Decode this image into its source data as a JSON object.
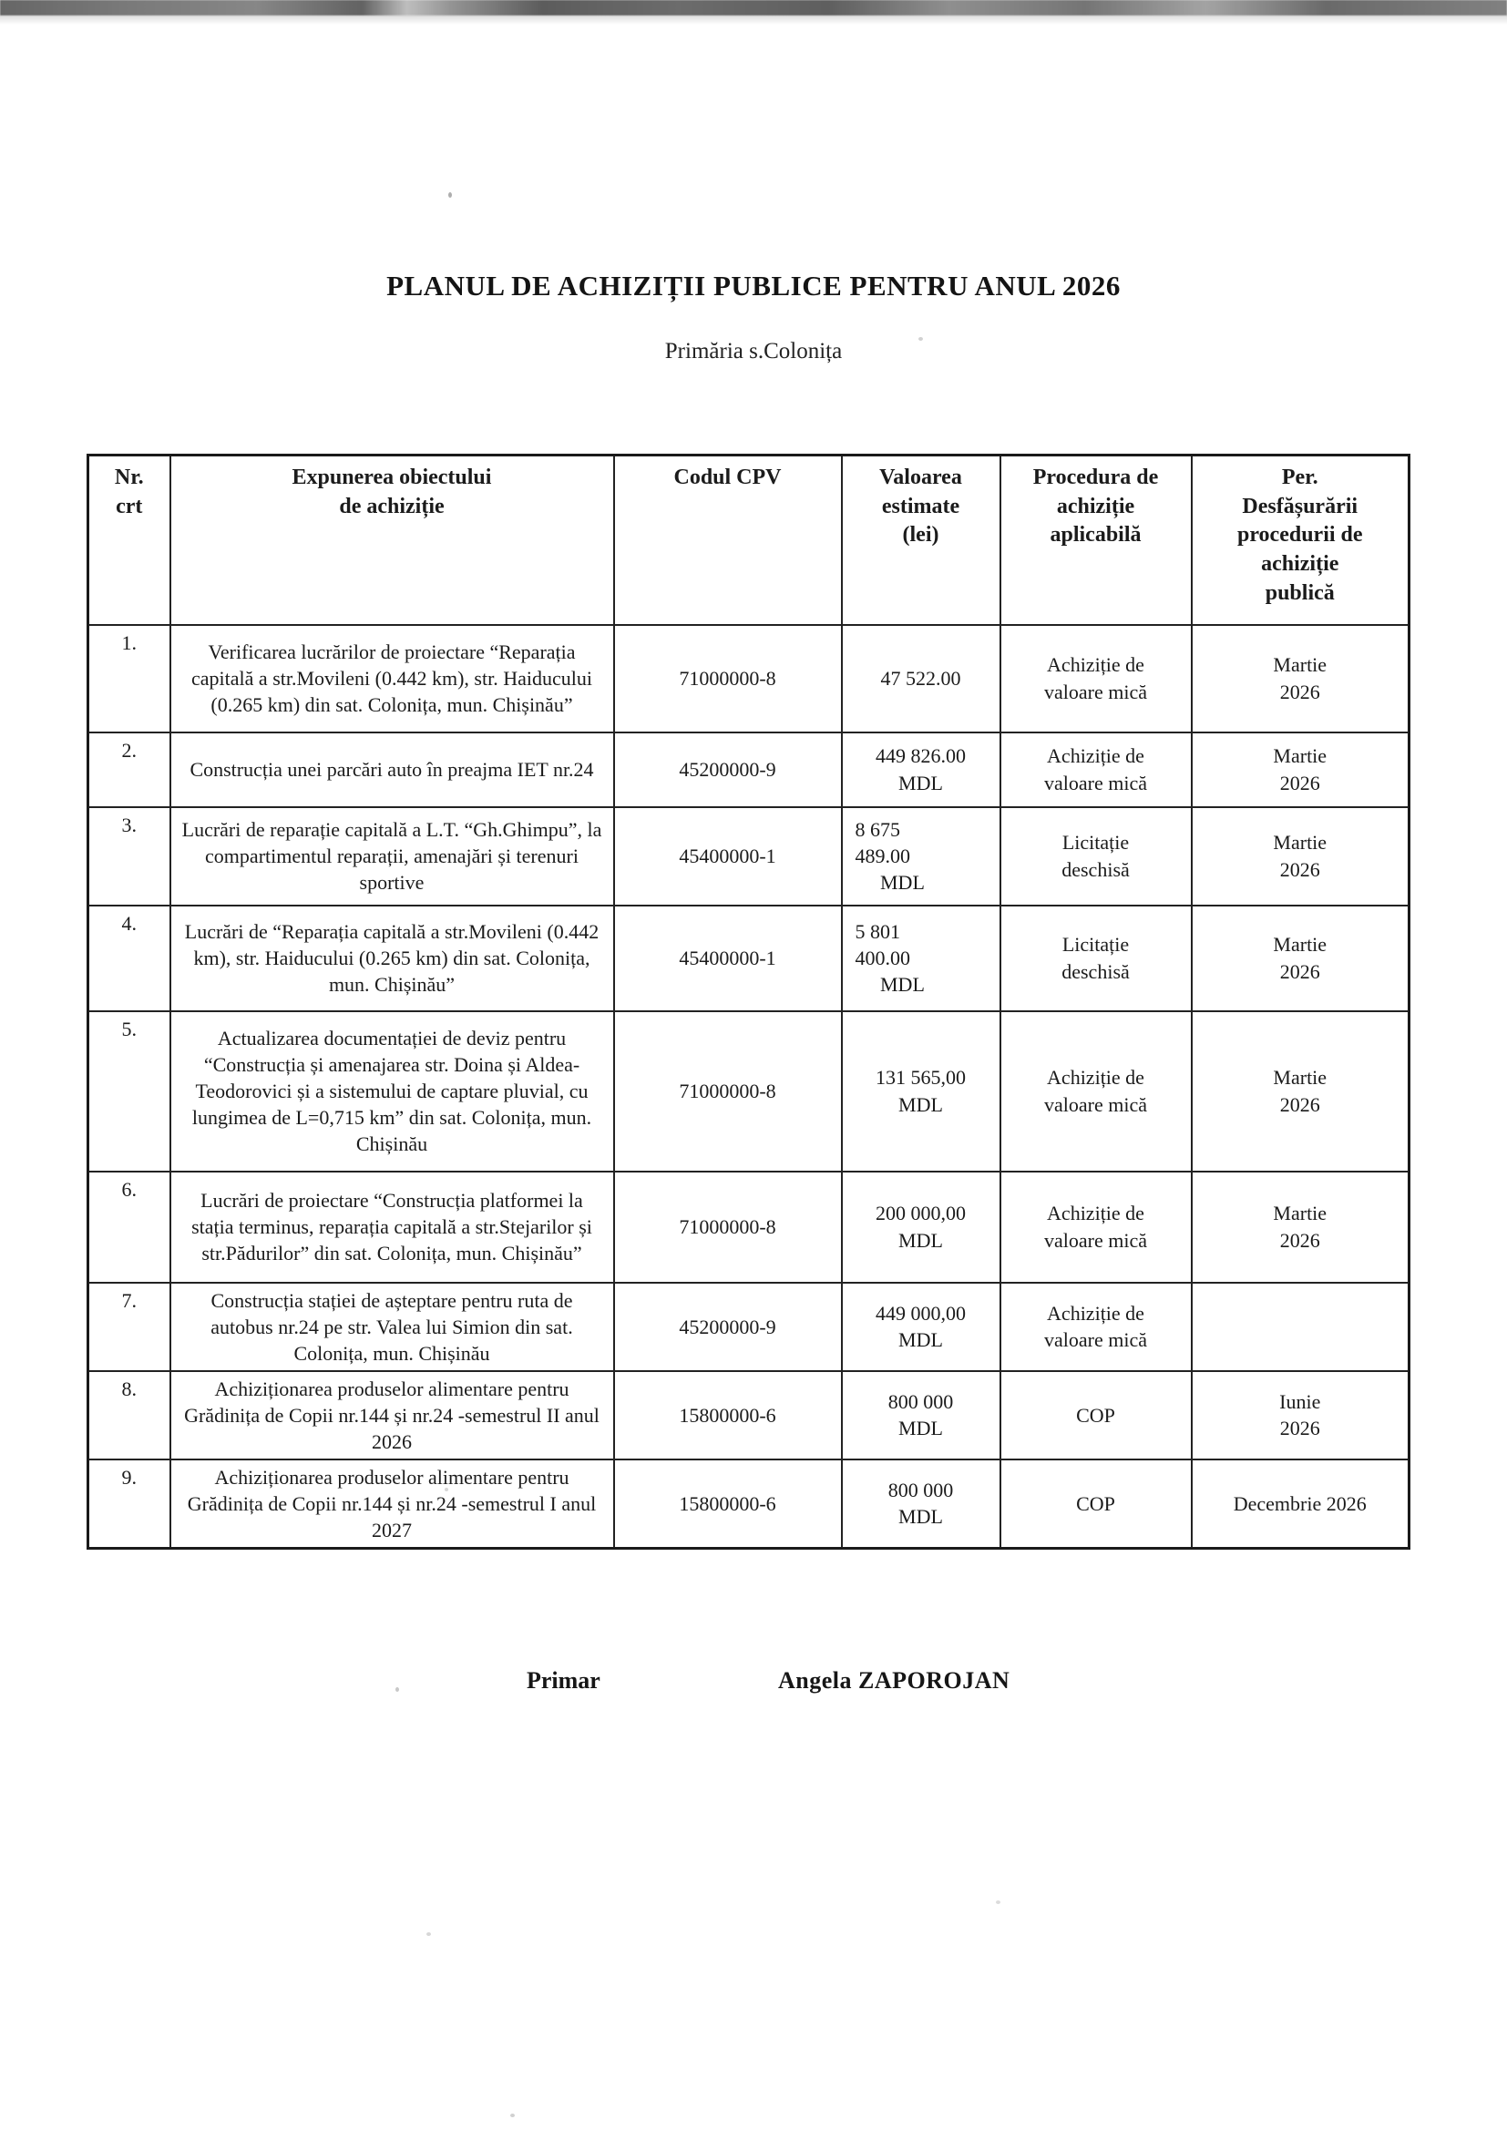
{
  "page": {
    "title": "PLANUL DE ACHIZIȚII PUBLICE PENTRU ANUL 2026",
    "subtitle": "Primăria s.Colonița"
  },
  "table": {
    "headers": [
      "Nr.\ncrt",
      "Expunerea obiectului\nde achiziție",
      "Codul CPV",
      "Valoarea\nestimate\n(lei)",
      "Procedura de\nachiziție\naplicabilă",
      "Per.\nDesfășurării\nprocedurii de\nachiziție\npublică"
    ],
    "rows": [
      {
        "nr": "1.",
        "object": "Verificarea lucrărilor de proiectare “Reparația capitală a str.Movileni (0.442 km), str. Haiducului (0.265 km) din sat. Colonița, mun. Chișinău”",
        "cpv": "71000000-8",
        "value": "47 522.00",
        "value_align": "center",
        "procedure": "Achiziție de\nvaloare mică",
        "period": "Martie\n2026"
      },
      {
        "nr": "2.",
        "object": "Construcția unei parcări auto în preajma IET nr.24",
        "cpv": "45200000-9",
        "value": "449 826.00\nMDL",
        "value_align": "center",
        "procedure": "Achiziție de\nvaloare mică",
        "period": "Martie\n2026"
      },
      {
        "nr": "3.",
        "object": "Lucrări de reparație capitală a L.T. “Gh.Ghimpu”, la compartimentul reparații, amenajări și terenuri sportive",
        "cpv": "45400000-1",
        "value": "8 675\n489.00\n     MDL",
        "value_align": "left",
        "procedure": "Licitație\ndeschisă",
        "period": "Martie\n2026"
      },
      {
        "nr": "4.",
        "object": "Lucrări de “Reparația capitală a str.Movileni (0.442 km), str. Haiducului (0.265 km) din sat. Colonița, mun. Chișinău”",
        "cpv": "45400000-1",
        "value": "5 801\n400.00\n     MDL",
        "value_align": "left",
        "procedure": "Licitație\ndeschisă",
        "period": "Martie\n2026"
      },
      {
        "nr": "5.",
        "object": "Actualizarea documentației de deviz pentru “Construcția și amenajarea str. Doina și Aldea-Teodorovici și a sistemului de captare pluvial, cu lungimea de L=0,715 km” din sat. Colonița, mun. Chișinău",
        "cpv": "71000000-8",
        "value": "131 565,00\nMDL",
        "value_align": "center",
        "procedure": "Achiziție de\nvaloare mică",
        "period": "Martie\n2026"
      },
      {
        "nr": "6.",
        "object": "Lucrări de proiectare “Construcția platformei la stația terminus, reparația capitală a str.Stejarilor și str.Pădurilor” din sat. Colonița, mun. Chișinău”",
        "cpv": "71000000-8",
        "value": "200 000,00\nMDL",
        "value_align": "center",
        "procedure": "Achiziție de\nvaloare mică",
        "period": "Martie\n2026"
      },
      {
        "nr": "7.",
        "object": "Construcția stației de așteptare pentru ruta de autobus nr.24 pe str. Valea lui Simion din sat. Colonița, mun. Chișinău",
        "cpv": "45200000-9",
        "value": "449 000,00\nMDL",
        "value_align": "center",
        "procedure": "Achiziție de\nvaloare mică",
        "period": ""
      },
      {
        "nr": "8.",
        "object": "Achiziționarea produselor alimentare pentru Grădinița de Copii nr.144 și nr.24 -semestrul II anul 2026",
        "cpv": "15800000-6",
        "value": "800 000\nMDL",
        "value_align": "center",
        "procedure": "COP",
        "period": "Iunie\n2026"
      },
      {
        "nr": "9.",
        "object": "Achiziționarea produselor alimentare pentru Grădinița de Copii nr.144 și nr.24 -semestrul I anul 2027",
        "cpv": "15800000-6",
        "value": "800 000\nMDL",
        "value_align": "center",
        "procedure": "COP",
        "period": "Decembrie 2026"
      }
    ]
  },
  "signature": {
    "role": "Primar",
    "name": "Angela ZAPOROJAN"
  }
}
